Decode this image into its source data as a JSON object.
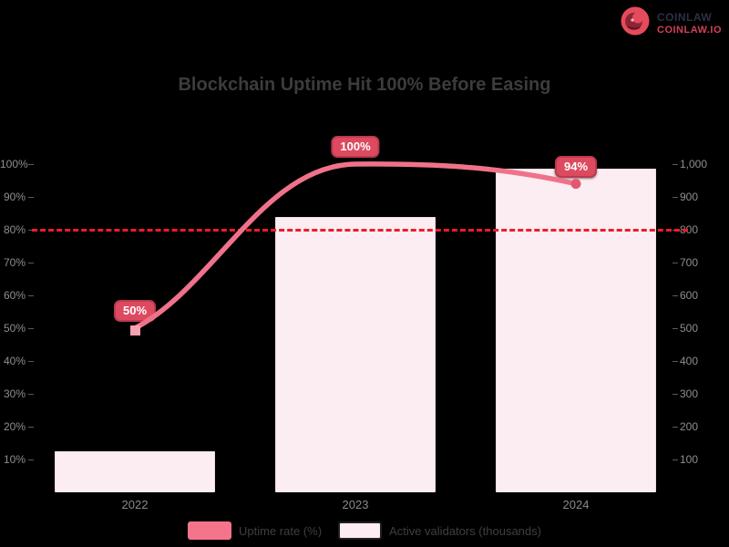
{
  "logo": {
    "line1": "COINLAW",
    "line2": "COINLAW.IO"
  },
  "title": "Blockchain Uptime Hit 100% Before Easing",
  "chart_data": {
    "type": "combo",
    "categories": [
      "2022",
      "2023",
      "2024"
    ],
    "series": [
      {
        "name": "Uptime rate (%)",
        "type": "line",
        "axis": "left",
        "values": [
          50,
          100,
          94
        ],
        "point_labels": [
          "50%",
          "100%",
          "94%"
        ],
        "color": "#f0728a"
      },
      {
        "name": "Active validators (thousands)",
        "type": "bar",
        "axis": "right",
        "values": [
          125,
          840,
          985
        ],
        "color": "#fbedf1"
      }
    ],
    "target_line": {
      "value": 80,
      "axis": "left",
      "style": "dashed",
      "color": "#ee1c25"
    },
    "left_axis": {
      "min": 0,
      "max": 100,
      "ticks": [
        "100%",
        "90%",
        "80%",
        "70%",
        "60%",
        "50%",
        "40%",
        "30%",
        "20%",
        "10%"
      ]
    },
    "right_axis": {
      "min": 0,
      "max": 1000,
      "ticks": [
        "1,000",
        "900",
        "800",
        "700",
        "600",
        "500",
        "400",
        "300",
        "200",
        "100"
      ]
    },
    "grid": false,
    "legend_position": "bottom"
  },
  "legend": [
    {
      "label": "Uptime rate (%)"
    },
    {
      "label": "Active validators (thousands)"
    }
  ],
  "colors": {
    "background": "#000000",
    "bar_fill": "#fbedf1",
    "line": "#f0728a",
    "target": "#ee1c25",
    "label_box": "#dd4a60",
    "label_box_border": "#b93a50",
    "axis_text": "#8e8e8e",
    "title_text": "#3c3c3c",
    "logo_red": "#e64b5c"
  }
}
